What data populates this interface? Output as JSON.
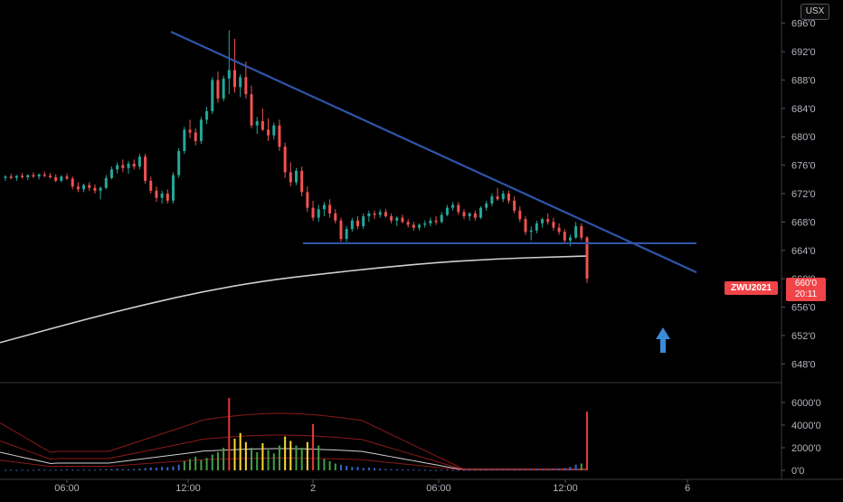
{
  "chart_data": [
    {
      "type": "candlestick",
      "symbol": "ZWU2021",
      "currency": "USX",
      "last_price_label": "660'0",
      "countdown": "20:11",
      "y_ticks": [
        "696'0",
        "692'0",
        "688'0",
        "684'0",
        "680'0",
        "676'0",
        "672'0",
        "668'0",
        "664'0",
        "660'0",
        "656'0",
        "652'0",
        "648'0"
      ],
      "y_values": [
        696,
        692,
        688,
        684,
        680,
        676,
        672,
        668,
        664,
        660,
        656,
        652,
        648
      ],
      "ylim": [
        646,
        698
      ],
      "x_ticks": [
        "06:00",
        "12:00",
        "2",
        "06:00",
        "12:00",
        "6"
      ],
      "grid": false,
      "annotations": {
        "descending_trendline": {
          "from": [
            0,
            694.8
          ],
          "to": [
            1,
            660.9
          ]
        },
        "support_line": {
          "from": [
            0.3,
            665.0
          ],
          "to": [
            1,
            665.0
          ]
        },
        "arrow": "up"
      },
      "series": [
        {
          "kind": "ohlc",
          "values": [
            [
              674.2,
              674.6,
              673.8,
              674.4
            ],
            [
              674.4,
              674.8,
              674.0,
              674.2
            ],
            [
              674.2,
              674.6,
              673.8,
              674.5
            ],
            [
              674.5,
              674.9,
              674.1,
              674.3
            ],
            [
              674.3,
              674.7,
              673.9,
              674.6
            ],
            [
              674.6,
              675.0,
              674.2,
              674.4
            ],
            [
              674.4,
              674.8,
              674.0,
              674.7
            ],
            [
              674.7,
              675.1,
              674.3,
              674.5
            ],
            [
              674.5,
              674.9,
              674.1,
              674.3
            ],
            [
              674.3,
              674.7,
              673.6,
              673.8
            ],
            [
              673.8,
              674.6,
              673.6,
              674.4
            ],
            [
              674.4,
              674.8,
              673.9,
              674.1
            ],
            [
              674.1,
              674.4,
              672.6,
              673.0
            ],
            [
              673.0,
              673.6,
              672.2,
              672.6
            ],
            [
              672.6,
              673.4,
              672.2,
              673.2
            ],
            [
              673.2,
              673.6,
              672.4,
              672.8
            ],
            [
              672.8,
              673.3,
              672.0,
              672.4
            ],
            [
              672.4,
              673.0,
              671.2,
              672.8
            ],
            [
              672.8,
              674.6,
              672.6,
              674.2
            ],
            [
              674.2,
              675.8,
              674.0,
              675.4
            ],
            [
              675.4,
              676.4,
              674.8,
              676.0
            ],
            [
              676.0,
              676.8,
              675.0,
              675.6
            ],
            [
              675.6,
              676.6,
              674.8,
              676.2
            ],
            [
              676.2,
              676.8,
              675.4,
              675.8
            ],
            [
              675.8,
              677.6,
              675.4,
              677.2
            ],
            [
              677.2,
              677.6,
              673.4,
              673.8
            ],
            [
              673.8,
              674.4,
              672.0,
              672.4
            ],
            [
              672.4,
              673.0,
              670.8,
              671.4
            ],
            [
              671.4,
              672.4,
              670.6,
              672.0
            ],
            [
              672.0,
              672.6,
              670.6,
              671.0
            ],
            [
              671.0,
              675.0,
              670.6,
              674.6
            ],
            [
              674.6,
              678.4,
              674.2,
              678.0
            ],
            [
              678.0,
              681.4,
              677.6,
              681.0
            ],
            [
              681.0,
              682.4,
              679.8,
              680.6
            ],
            [
              680.6,
              681.2,
              678.8,
              679.4
            ],
            [
              679.4,
              682.8,
              679.0,
              682.4
            ],
            [
              682.4,
              684.2,
              681.8,
              683.6
            ],
            [
              683.6,
              688.4,
              683.2,
              688.0
            ],
            [
              688.0,
              689.2,
              684.8,
              685.4
            ],
            [
              685.4,
              688.6,
              685.0,
              688.2
            ],
            [
              688.2,
              695.0,
              686.0,
              689.4
            ],
            [
              689.4,
              693.8,
              686.2,
              687.0
            ],
            [
              687.0,
              688.8,
              685.6,
              688.4
            ],
            [
              688.4,
              690.6,
              685.4,
              686.0
            ],
            [
              686.0,
              687.2,
              681.2,
              681.6
            ],
            [
              681.6,
              682.8,
              680.4,
              682.2
            ],
            [
              682.2,
              684.0,
              680.8,
              681.0
            ],
            [
              681.0,
              682.6,
              679.4,
              680.2
            ],
            [
              680.2,
              682.0,
              679.6,
              681.6
            ],
            [
              681.6,
              682.4,
              678.0,
              678.6
            ],
            [
              678.6,
              679.2,
              674.2,
              675.0
            ],
            [
              675.0,
              676.4,
              673.0,
              673.6
            ],
            [
              673.6,
              675.6,
              673.2,
              675.2
            ],
            [
              675.2,
              675.8,
              671.6,
              672.2
            ],
            [
              672.2,
              673.0,
              669.4,
              670.0
            ],
            [
              670.0,
              671.0,
              668.2,
              668.6
            ],
            [
              668.6,
              670.4,
              668.0,
              669.8
            ],
            [
              669.8,
              670.8,
              668.8,
              670.4
            ],
            [
              670.4,
              671.2,
              668.6,
              669.2
            ],
            [
              669.2,
              669.8,
              667.8,
              668.2
            ],
            [
              668.2,
              668.6,
              665.2,
              665.6
            ],
            [
              665.6,
              667.4,
              665.2,
              667.0
            ],
            [
              667.0,
              668.6,
              666.6,
              668.2
            ],
            [
              668.2,
              668.8,
              667.0,
              667.4
            ],
            [
              667.4,
              669.2,
              667.0,
              668.8
            ],
            [
              668.8,
              669.6,
              668.0,
              669.2
            ],
            [
              669.2,
              669.6,
              668.4,
              669.0
            ],
            [
              669.0,
              669.8,
              668.6,
              669.4
            ],
            [
              669.4,
              669.8,
              668.6,
              668.8
            ],
            [
              668.8,
              669.2,
              667.8,
              668.2
            ],
            [
              668.2,
              668.8,
              667.4,
              668.6
            ],
            [
              668.6,
              669.0,
              667.8,
              668.0
            ],
            [
              668.0,
              668.4,
              667.2,
              667.6
            ],
            [
              667.6,
              668.0,
              666.8,
              667.2
            ],
            [
              667.2,
              667.8,
              666.8,
              667.6
            ],
            [
              667.6,
              668.2,
              667.2,
              667.8
            ],
            [
              667.8,
              668.6,
              667.4,
              668.2
            ],
            [
              668.2,
              668.8,
              667.6,
              668.0
            ],
            [
              668.0,
              669.4,
              667.8,
              669.0
            ],
            [
              669.0,
              670.4,
              668.8,
              670.0
            ],
            [
              670.0,
              670.8,
              669.6,
              670.4
            ],
            [
              670.4,
              670.8,
              669.0,
              669.4
            ],
            [
              669.4,
              669.8,
              668.4,
              668.8
            ],
            [
              668.8,
              669.4,
              668.2,
              669.2
            ],
            [
              669.2,
              669.6,
              668.2,
              668.6
            ],
            [
              668.6,
              670.2,
              668.4,
              670.0
            ],
            [
              670.0,
              671.0,
              669.6,
              670.6
            ],
            [
              670.6,
              672.0,
              670.2,
              671.6
            ],
            [
              671.6,
              672.8,
              671.0,
              671.2
            ],
            [
              671.2,
              672.4,
              670.8,
              672.0
            ],
            [
              672.0,
              672.4,
              670.6,
              671.0
            ],
            [
              671.0,
              671.6,
              669.2,
              669.6
            ],
            [
              669.6,
              670.2,
              668.0,
              668.4
            ],
            [
              668.4,
              668.8,
              666.2,
              666.6
            ],
            [
              666.6,
              667.4,
              665.4,
              666.8
            ],
            [
              666.8,
              668.2,
              666.4,
              667.8
            ],
            [
              667.8,
              668.6,
              667.2,
              668.4
            ],
            [
              668.4,
              669.2,
              667.6,
              668.0
            ],
            [
              668.0,
              668.6,
              666.8,
              667.2
            ],
            [
              667.2,
              667.8,
              666.2,
              666.6
            ],
            [
              666.6,
              667.0,
              665.0,
              665.4
            ],
            [
              665.4,
              666.2,
              664.6,
              665.8
            ],
            [
              665.8,
              668.0,
              665.6,
              667.4
            ],
            [
              667.4,
              667.8,
              665.4,
              665.8
            ],
            [
              665.8,
              666.0,
              659.4,
              660.0
            ]
          ]
        },
        {
          "kind": "moving_average",
          "color": "#cfcfcf",
          "values": [
            651.0,
            655.5,
            659.2,
            661.2,
            662.7,
            663.2
          ]
        },
        {
          "kind": "volume",
          "values": [
            0.04,
            0.05,
            0.03,
            0.06,
            0.04,
            0.05,
            0.07,
            0.05,
            0.04,
            0.06,
            0.05,
            0.08,
            0.06,
            0.05,
            0.07,
            0.06,
            0.05,
            0.08,
            0.1,
            0.12,
            0.14,
            0.1,
            0.09,
            0.12,
            0.15,
            0.2,
            0.25,
            0.22,
            0.3,
            0.28,
            0.35,
            0.5,
            0.8,
            1.0,
            1.2,
            0.9,
            1.1,
            1.4,
            1.6,
            2.0,
            6.4,
            2.8,
            3.3,
            2.5,
            2.0,
            1.6,
            2.4,
            1.8,
            1.5,
            2.2,
            3.0,
            2.6,
            2.2,
            2.0,
            2.5,
            4.1,
            2.2,
            1.0,
            0.8,
            0.6,
            0.5,
            0.4,
            0.3,
            0.3,
            0.2,
            0.25,
            0.2,
            0.15,
            0.12,
            0.1,
            0.1,
            0.08,
            0.07,
            0.06,
            0.05,
            0.05,
            0.04,
            0.04,
            0.05,
            0.06,
            0.05,
            0.04,
            0.04,
            0.05,
            0.06,
            0.06,
            0.05,
            0.06,
            0.07,
            0.08,
            0.07,
            0.06,
            0.08,
            0.1,
            0.12,
            0.14,
            0.12,
            0.1,
            0.12,
            0.15,
            0.2,
            0.3,
            0.5,
            0.6,
            5.2
          ]
        }
      ]
    },
    {
      "type": "volume",
      "y_ticks": [
        "6000'0",
        "4000'0",
        "2000'0",
        "0'0"
      ],
      "y_values": [
        6000,
        4000,
        2000,
        0
      ],
      "ylim": [
        0,
        7200
      ]
    }
  ]
}
